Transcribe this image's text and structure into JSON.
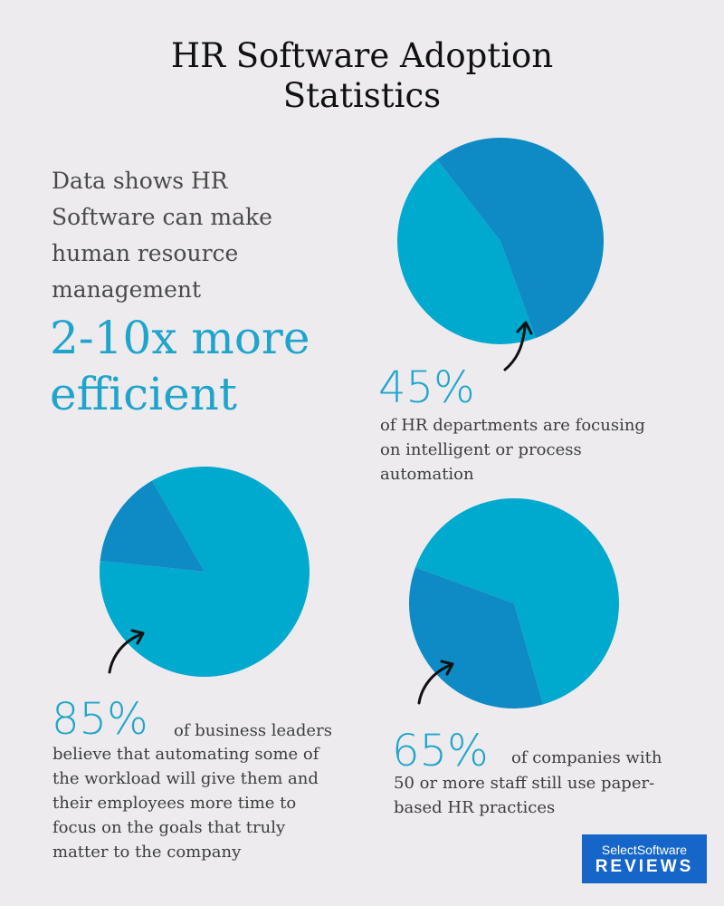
{
  "page": {
    "title_line1": "HR Software Adoption",
    "title_line2": "Statistics"
  },
  "intro": {
    "line1": "Data shows HR",
    "line2": "Software can make",
    "line3": "human resource",
    "line4": "management",
    "highlight_line1": "2-10x more",
    "highlight_line2": "efficient"
  },
  "colors": {
    "background": "#edebee",
    "slice_highlight": "#0e8ac4",
    "slice_main": "#00a9ce",
    "accent_text": "#1fa5cc",
    "logo_bg": "#1666c9"
  },
  "chart_data": [
    {
      "type": "pie",
      "percent": "45%",
      "caption_line1": "of HR departments are focusing",
      "caption_line2": "on intelligent or process",
      "caption_line3": "automation",
      "slices": [
        {
          "value": 45
        },
        {
          "value": 55
        }
      ]
    },
    {
      "type": "pie",
      "percent": "85%",
      "caption_line1": "of business leaders",
      "caption_line2": "believe that automating some of",
      "caption_line3": "the workload will give them and",
      "caption_line4": "their employees more time to",
      "caption_line5": "focus on the goals that truly",
      "caption_line6": "matter to the company",
      "slices": [
        {
          "value": 85
        },
        {
          "value": 15
        }
      ]
    },
    {
      "type": "pie",
      "percent": "65%",
      "caption_line1": "of companies with",
      "caption_line2": "50 or more staff still use paper-",
      "caption_line3": "based HR practices",
      "slices": [
        {
          "value": 65
        },
        {
          "value": 35
        }
      ]
    }
  ],
  "logo": {
    "line1": "SelectSoftware",
    "line2": "REVIEWS"
  }
}
